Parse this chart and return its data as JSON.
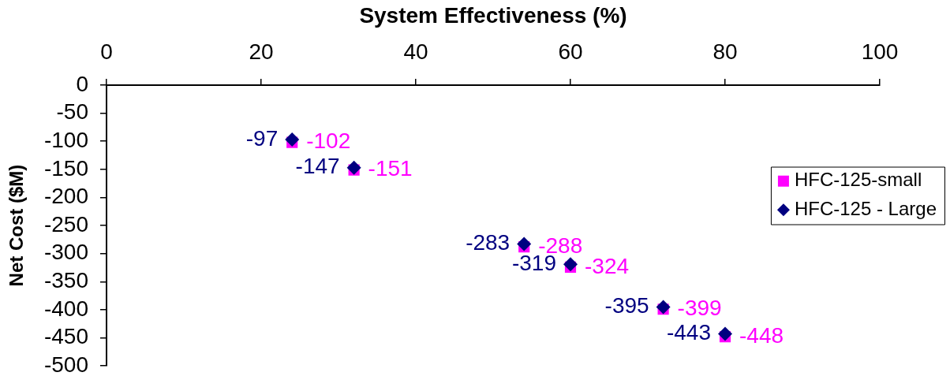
{
  "chart_data": {
    "type": "scatter",
    "xlabel": "System Effectiveness (%)",
    "ylabel": "Net Cost ($M)",
    "xlim": [
      0,
      100
    ],
    "xticks": [
      0,
      20,
      40,
      60,
      80,
      100
    ],
    "ylim": [
      -500,
      0
    ],
    "yticks": [
      -500,
      -450,
      -400,
      -350,
      -300,
      -250,
      -200,
      -150,
      -100,
      -50,
      0
    ],
    "legend": "right",
    "data_labels": true,
    "x": [
      24,
      32,
      54,
      60,
      72,
      80
    ],
    "series": [
      {
        "name": "HFC-125-small",
        "color": "#ff00ff",
        "marker": "square",
        "values": [
          -102,
          -151,
          -288,
          -324,
          -399,
          -448
        ]
      },
      {
        "name": "HFC-125 - Large",
        "color": "#000080",
        "marker": "diamond",
        "values": [
          -97,
          -147,
          -283,
          -319,
          -395,
          -443
        ]
      }
    ]
  }
}
